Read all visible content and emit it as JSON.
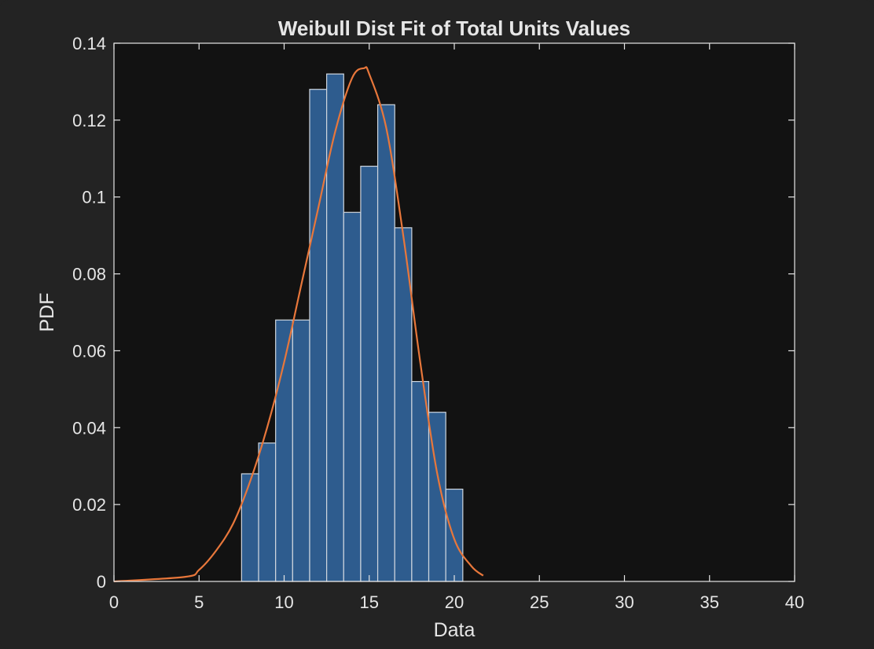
{
  "chart_data": {
    "type": "bar",
    "title": "Weibull Dist Fit of Total Units Values",
    "xlabel": "Data",
    "ylabel": "PDF",
    "xlim": [
      0,
      40
    ],
    "ylim": [
      0,
      0.14
    ],
    "xticks": [
      0,
      5,
      10,
      15,
      20,
      25,
      30,
      35,
      40
    ],
    "xtick_labels": [
      "0",
      "5",
      "10",
      "15",
      "20",
      "25",
      "30",
      "35",
      "40"
    ],
    "yticks": [
      0,
      0.02,
      0.04,
      0.06,
      0.08,
      0.1,
      0.12,
      0.14
    ],
    "ytick_labels": [
      "0",
      "0.02",
      "0.04",
      "0.06",
      "0.08",
      "0.1",
      "0.12",
      "0.14"
    ],
    "grid": false,
    "bin_edges": [
      7.5,
      8.5,
      9.5,
      10.5,
      11.5,
      12.5,
      13.5,
      14.5,
      15.5,
      16.5,
      17.5,
      18.5,
      19.5,
      20.5
    ],
    "values": [
      0.028,
      0.036,
      0.068,
      0.068,
      0.128,
      0.132,
      0.096,
      0.108,
      0.124,
      0.092,
      0.052,
      0.044,
      0.024
    ],
    "fit_curve": {
      "x": [
        0,
        4.2,
        5,
        6,
        7,
        8,
        9,
        10,
        11,
        12,
        13,
        14,
        14.7,
        15,
        16,
        17,
        18,
        19,
        20,
        21,
        21.7
      ],
      "y": [
        0,
        0.0012,
        0.003,
        0.008,
        0.015,
        0.026,
        0.04,
        0.057,
        0.077,
        0.097,
        0.117,
        0.131,
        0.1335,
        0.132,
        0.118,
        0.09,
        0.057,
        0.028,
        0.011,
        0.004,
        0.0015
      ]
    },
    "colors": {
      "figure_bg": "#232323",
      "axes_bg": "#121212",
      "bar_fill": "#2e5c8e",
      "bar_edge": "#cfd6de",
      "curve": "#e8773b",
      "axis": "#e6e6e6",
      "text": "#e6e6e6"
    }
  }
}
